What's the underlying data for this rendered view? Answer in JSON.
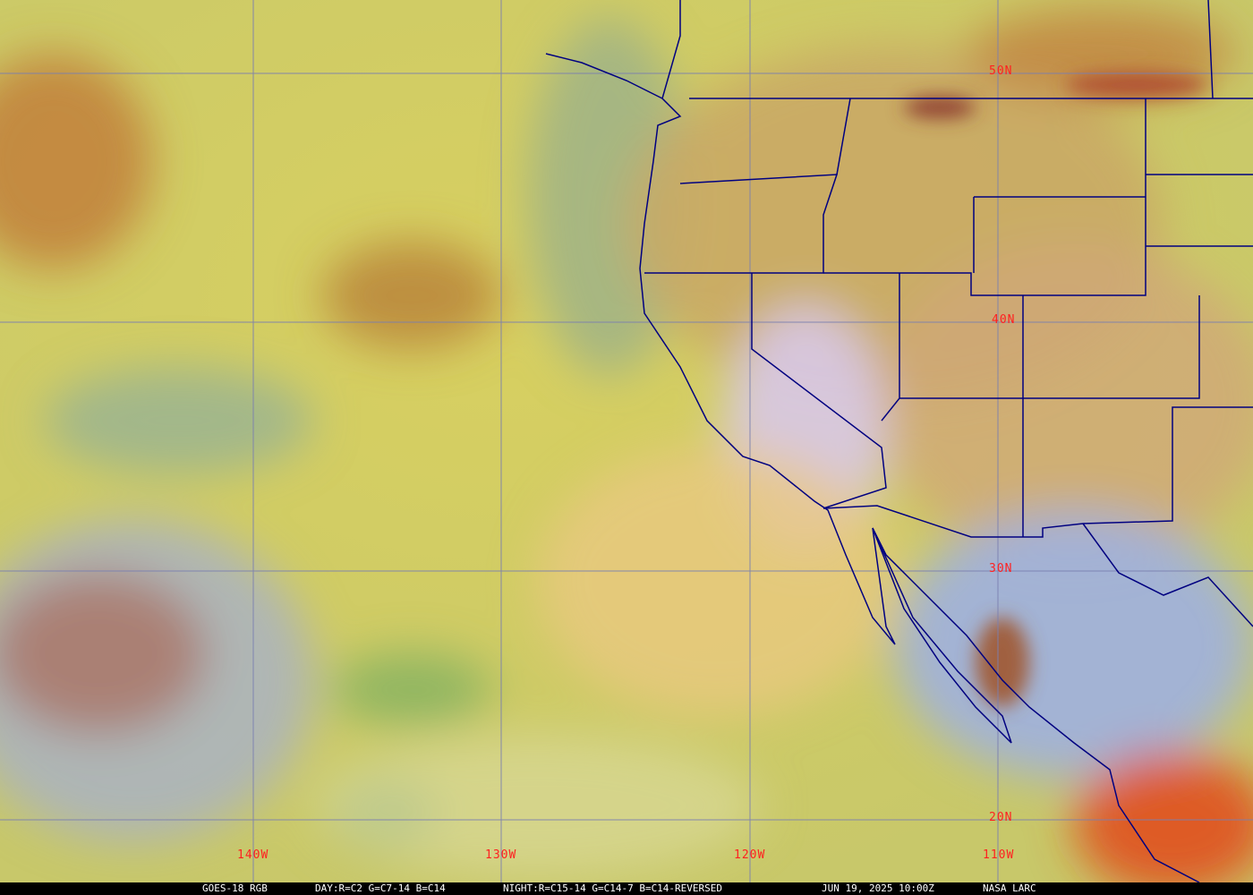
{
  "caption": {
    "satellite": "GOES-18 RGB",
    "day_recipe": "DAY:R=C2 G=C7-14 B=C14",
    "night_recipe": "NIGHT:R=C15-14 G=C14-7 B=C14-REVERSED",
    "timestamp": "JUN 19, 2025 10:00Z",
    "credit": "NASA LARC"
  },
  "grid": {
    "latitudes": [
      "50N",
      "40N",
      "30N",
      "20N"
    ],
    "longitudes": [
      "140W",
      "130W",
      "120W",
      "110W"
    ],
    "label_color": "#ff2020",
    "grid_color": "#7a7fb0",
    "boundary_color": "#000080"
  }
}
